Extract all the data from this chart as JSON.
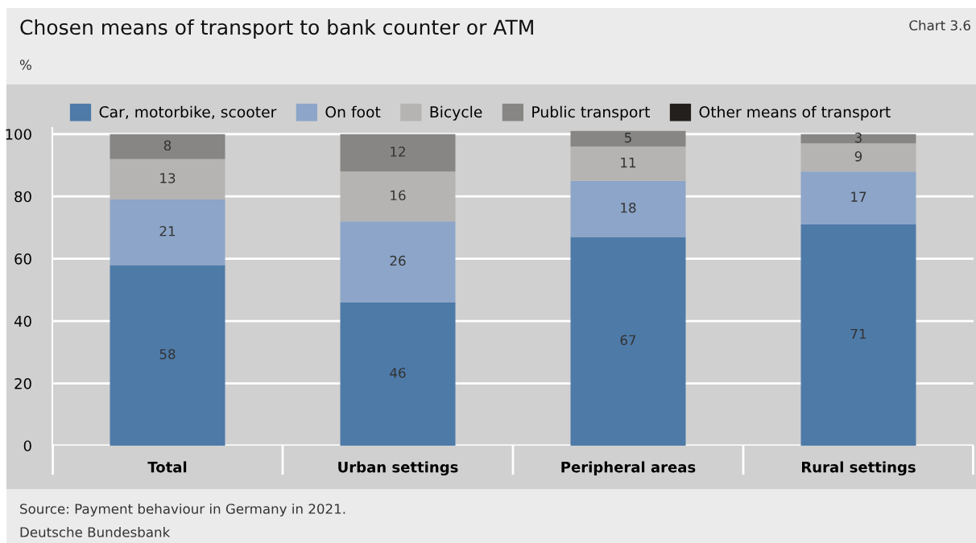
{
  "chart_data": {
    "type": "bar",
    "title": "Chosen means of transport to bank counter or ATM",
    "ylabel": "%",
    "annotations": [
      "Chart 3.6",
      "Source: Payment behaviour in Germany in 2021.",
      "Deutsche Bundesbank"
    ],
    "categories": [
      "Total",
      "Urban settings",
      "Peripheral areas",
      "Rural settings"
    ],
    "stacked": true,
    "ylim": [
      0,
      102
    ],
    "yticks": [
      0,
      20,
      40,
      60,
      80,
      100
    ],
    "grid": "y",
    "legend": "top",
    "data_labels": true,
    "series": [
      {
        "name": "Car, motorbike, scooter",
        "color": "#4e7aa8",
        "values": [
          58,
          46,
          67,
          71
        ]
      },
      {
        "name": "On foot",
        "color": "#8ca5c8",
        "values": [
          21,
          26,
          18,
          17
        ]
      },
      {
        "name": "Bicycle",
        "color": "#b5b4b2",
        "values": [
          13,
          16,
          11,
          9
        ]
      },
      {
        "name": "Public transport",
        "color": "#878684",
        "values": [
          8,
          12,
          5,
          3
        ]
      },
      {
        "name": "Other means of transport",
        "color": "#231f1c",
        "values": [
          0,
          0,
          0,
          0
        ],
        "value_labels": [
          null,
          null,
          null,
          null
        ]
      }
    ]
  }
}
